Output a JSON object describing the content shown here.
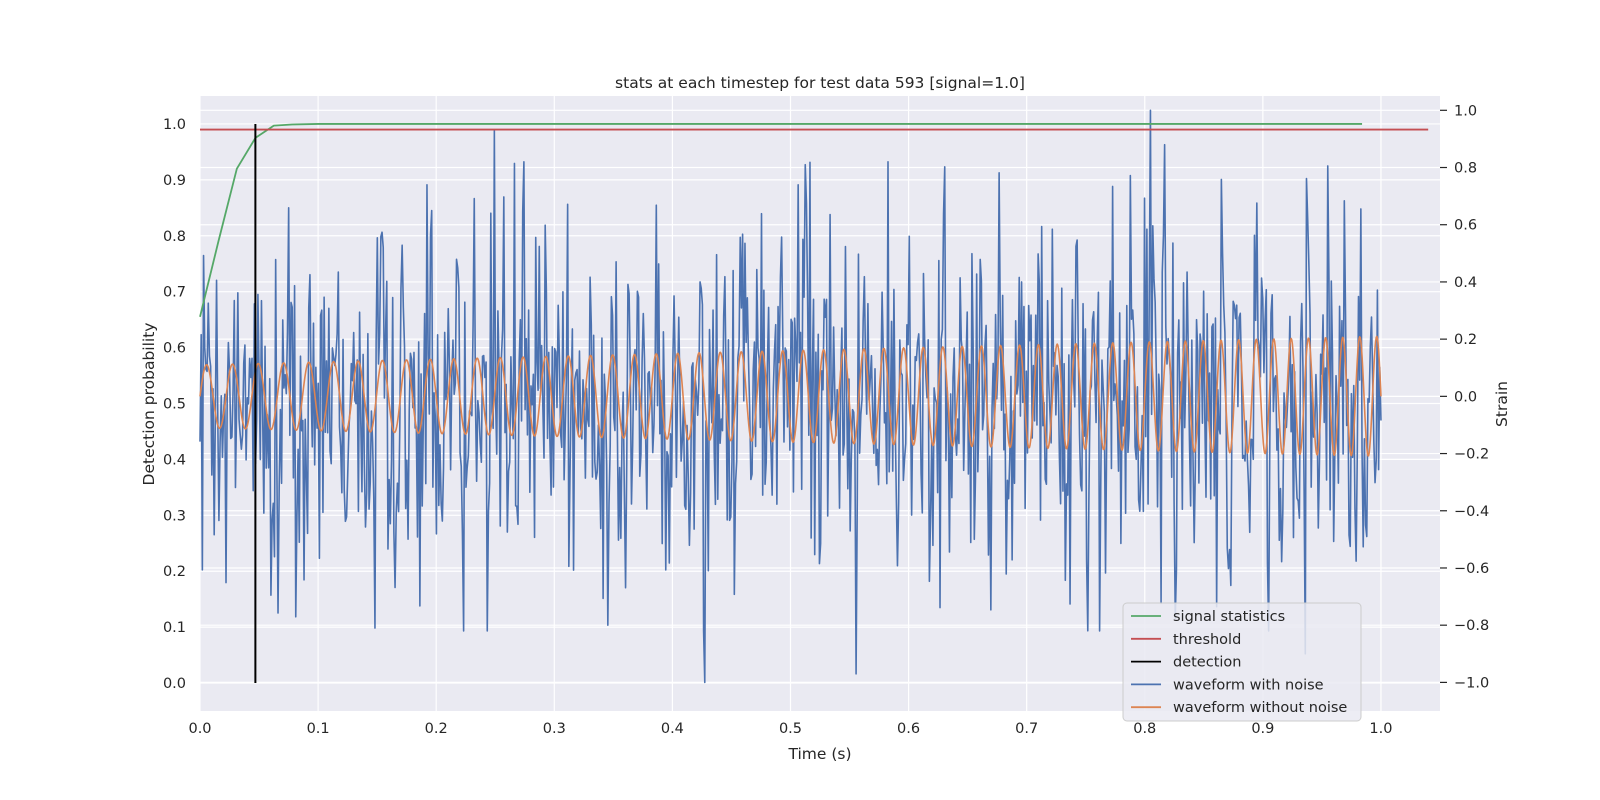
{
  "chart_data": {
    "type": "line",
    "title": "stats at each timestep for test data 593 [signal=1.0]",
    "xlabel": "Time (s)",
    "ylabel": "Detection probability",
    "y2label": "Strain",
    "xlim": [
      0.0,
      1.05
    ],
    "ylim": [
      -0.05,
      1.05
    ],
    "y2lim": [
      -1.1,
      1.05
    ],
    "xticks": [
      "0.0",
      "0.1",
      "0.2",
      "0.3",
      "0.4",
      "0.5",
      "0.6",
      "0.7",
      "0.8",
      "0.9",
      "1.0"
    ],
    "yticks": [
      "0.0",
      "0.1",
      "0.2",
      "0.3",
      "0.4",
      "0.5",
      "0.6",
      "0.7",
      "0.8",
      "0.9",
      "1.0"
    ],
    "y2ticks": [
      "−1.0",
      "−0.8",
      "−0.6",
      "−0.4",
      "−0.2",
      "0.0",
      "0.2",
      "0.4",
      "0.6",
      "0.8",
      "1.0"
    ],
    "grid": true,
    "legend_position": "lower-right",
    "colors": {
      "background": "#eaeaf2",
      "grid": "#ffffff",
      "signal_statistics": "#55a868",
      "threshold": "#c44e52",
      "detection": "#000000",
      "waveform_with_noise": "#4c72b0",
      "waveform_without_noise": "#dd8452"
    },
    "series": [
      {
        "name": "signal statistics",
        "axis": "left",
        "x": [
          0.0,
          0.0156,
          0.0312,
          0.0469,
          0.0625,
          0.078,
          0.1,
          0.2,
          0.3,
          0.4,
          0.5,
          0.6,
          0.7,
          0.8,
          0.9,
          0.984
        ],
        "y": [
          0.655,
          0.79,
          0.92,
          0.975,
          0.997,
          0.999,
          1.0,
          1.0,
          1.0,
          1.0,
          1.0,
          1.0,
          1.0,
          1.0,
          1.0,
          1.0
        ]
      },
      {
        "name": "threshold",
        "axis": "left",
        "x": [
          0.0,
          1.04
        ],
        "y": [
          0.99,
          0.99
        ]
      },
      {
        "name": "detection",
        "axis": "left",
        "x": [
          0.0469,
          0.0469
        ],
        "y": [
          0.0,
          1.0
        ]
      },
      {
        "name": "waveform with noise",
        "axis": "right",
        "x_range": [
          0.0,
          1.0
        ],
        "num_points": 1000,
        "std": 0.3,
        "y_range": [
          -1.0,
          1.0
        ],
        "peaks": [
          {
            "x": 0.249,
            "y": 0.93
          },
          {
            "x": 0.427,
            "y": -1.0
          },
          {
            "x": 0.556,
            "y": -0.97
          },
          {
            "x": 0.805,
            "y": 1.0
          },
          {
            "x": 0.817,
            "y": 0.88
          },
          {
            "x": 0.936,
            "y": -0.9
          },
          {
            "x": 0.148,
            "y": -0.81
          }
        ]
      },
      {
        "name": "waveform without noise",
        "axis": "right",
        "x_range": [
          0.0,
          1.0
        ],
        "num_points": 2000,
        "frequency_start_hz": 45,
        "frequency_end_hz": 70,
        "amplitude_start": 0.11,
        "amplitude_end": 0.21
      }
    ]
  }
}
